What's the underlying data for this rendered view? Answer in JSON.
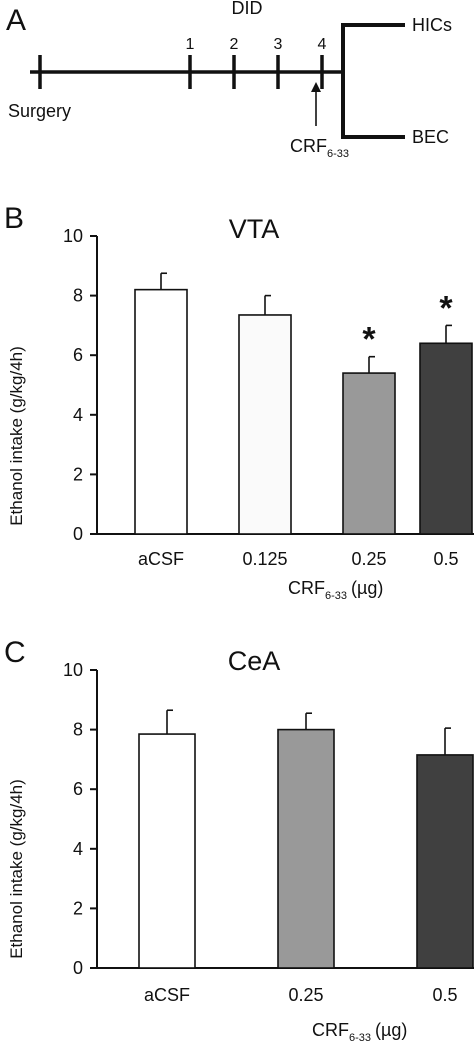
{
  "timeline": {
    "panel_label": "A",
    "header": "DID",
    "start_label": "Surgery",
    "day_labels": [
      "1",
      "2",
      "3",
      "4"
    ],
    "treatment_label": "CRF",
    "treatment_subscript": "6-33",
    "branch_top": "HICs",
    "branch_bottom": "BEC"
  },
  "chart_data": [
    {
      "type": "bar",
      "panel_label": "B",
      "title": "VTA",
      "categories": [
        "aCSF",
        "0.125",
        "0.25",
        "0.5"
      ],
      "values": [
        8.2,
        7.35,
        5.4,
        6.4
      ],
      "errors": [
        0.55,
        0.65,
        0.55,
        0.6
      ],
      "significant": [
        false,
        false,
        true,
        true
      ],
      "significance_marker": "*",
      "colors": [
        "#ffffff",
        "#fafafa",
        "#999999",
        "#404040"
      ],
      "ylabel": "Ethanol intake (g/kg/4h)",
      "xlabel_main": "CRF",
      "xlabel_sub": "6-33",
      "xlabel_unit": "(µg)",
      "ylim": [
        0,
        10
      ],
      "yticks": [
        "0",
        "2",
        "4",
        "6",
        "8",
        "10"
      ]
    },
    {
      "type": "bar",
      "panel_label": "C",
      "title": "CeA",
      "categories": [
        "aCSF",
        "0.25",
        "0.5"
      ],
      "values": [
        7.85,
        8.0,
        7.15
      ],
      "errors": [
        0.8,
        0.55,
        0.9
      ],
      "significant": [
        false,
        false,
        false
      ],
      "significance_marker": "*",
      "colors": [
        "#ffffff",
        "#999999",
        "#404040"
      ],
      "ylabel": "Ethanol intake (g/kg/4h)",
      "xlabel_main": "CRF",
      "xlabel_sub": "6-33",
      "xlabel_unit": "(µg)",
      "ylim": [
        0,
        10
      ],
      "yticks": [
        "0",
        "2",
        "4",
        "6",
        "8",
        "10"
      ]
    }
  ]
}
